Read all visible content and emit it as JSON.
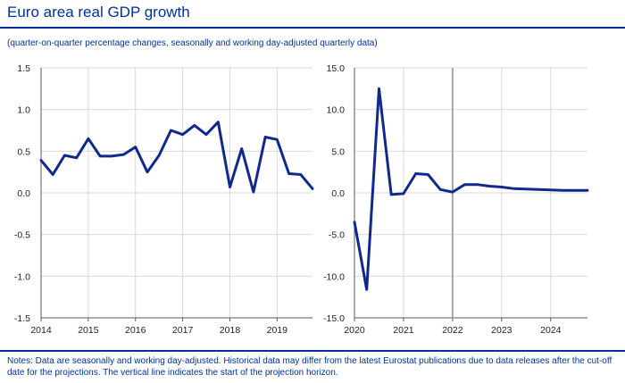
{
  "title": "Euro area real GDP growth",
  "subtitle": "(quarter-on-quarter percentage changes, seasonally and working day-adjusted quarterly data)",
  "notes": "Notes: Data are seasonally and working day-adjusted. Historical data may differ from the latest Eurostat publications due to data releases after the cut-off date for the projections. The vertical line indicates the start of the projection horizon.",
  "colors": {
    "line": "#12298c",
    "grid": "#d9d9d9",
    "axis": "#595959",
    "projection_line": "#a6a6a6"
  },
  "chart_data": [
    {
      "type": "line",
      "name": "left-panel",
      "ylim": [
        -1.5,
        1.5
      ],
      "yticks": [
        "1.5",
        "1.0",
        "0.5",
        "0.0",
        "-0.5",
        "-1.0",
        "-1.5"
      ],
      "ytick_values": [
        1.5,
        1.0,
        0.5,
        0.0,
        -0.5,
        -1.0,
        -1.5
      ],
      "xtick_labels": [
        "2014",
        "2015",
        "2016",
        "2017",
        "2018",
        "2019"
      ],
      "xlim": [
        2014.0,
        2019.75
      ],
      "series": [
        {
          "name": "Real GDP growth",
          "x": [
            2014.0,
            2014.25,
            2014.5,
            2014.75,
            2015.0,
            2015.25,
            2015.5,
            2015.75,
            2016.0,
            2016.25,
            2016.5,
            2016.75,
            2017.0,
            2017.25,
            2017.5,
            2017.75,
            2018.0,
            2018.25,
            2018.5,
            2018.75,
            2019.0,
            2019.25,
            2019.5,
            2019.75
          ],
          "values": [
            0.39,
            0.22,
            0.45,
            0.42,
            0.65,
            0.44,
            0.44,
            0.46,
            0.55,
            0.25,
            0.45,
            0.75,
            0.7,
            0.81,
            0.7,
            0.85,
            0.07,
            0.53,
            0.01,
            0.67,
            0.64,
            0.23,
            0.22,
            0.05
          ]
        }
      ]
    },
    {
      "type": "line",
      "name": "right-panel",
      "ylim": [
        -15.0,
        15.0
      ],
      "yticks": [
        "15.0",
        "10.0",
        "5.0",
        "0.0",
        "-5.0",
        "-10.0",
        "-15.0"
      ],
      "ytick_values": [
        15.0,
        10.0,
        5.0,
        0.0,
        -5.0,
        -10.0,
        -15.0
      ],
      "xtick_labels": [
        "2020",
        "2021",
        "2022",
        "2023",
        "2024"
      ],
      "xlim": [
        2020.0,
        2024.75
      ],
      "projection_start": 2022.0,
      "series": [
        {
          "name": "Real GDP growth",
          "x": [
            2020.0,
            2020.25,
            2020.5,
            2020.75,
            2021.0,
            2021.25,
            2021.5,
            2021.75,
            2022.0,
            2022.25,
            2022.5,
            2022.75,
            2023.0,
            2023.25,
            2023.5,
            2023.75,
            2024.0,
            2024.25,
            2024.5,
            2024.75
          ],
          "values": [
            -3.5,
            -11.6,
            12.5,
            -0.2,
            -0.1,
            2.3,
            2.2,
            0.4,
            0.1,
            1.0,
            1.0,
            0.8,
            0.7,
            0.5,
            0.45,
            0.4,
            0.35,
            0.3,
            0.3,
            0.3
          ]
        }
      ]
    }
  ]
}
